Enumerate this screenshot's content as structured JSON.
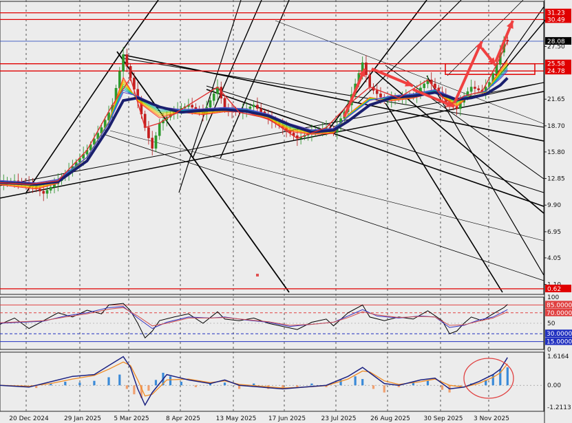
{
  "chart_data": [
    {
      "type": "candlestick",
      "panel": "price",
      "y_ticks": [
        "27.50",
        "21.65",
        "18.70",
        "15.80",
        "12.85",
        "9.90",
        "6.95",
        "4.05",
        "1.10"
      ],
      "y_ticks_values": [
        27.5,
        21.65,
        18.7,
        15.8,
        12.85,
        9.9,
        6.95,
        4.05,
        1.1
      ],
      "ylim": [
        0.0,
        32.5
      ],
      "price_labels": [
        {
          "text": "31.23",
          "value": 31.23,
          "color": "#e00000"
        },
        {
          "text": "30.49",
          "value": 30.49,
          "color": "#e00000"
        },
        {
          "text": "28.08",
          "value": 28.08,
          "color": "#000000"
        },
        {
          "text": "25.58",
          "value": 25.58,
          "color": "#e00000"
        },
        {
          "text": "24.78",
          "value": 24.78,
          "color": "#e00000"
        },
        {
          "text": "0.62",
          "value": 0.62,
          "color": "#e00000"
        }
      ],
      "horizontal_levels": [
        31.23,
        30.49,
        25.58,
        24.78,
        0.62
      ],
      "current_price_line": 28.08,
      "x_labels": [
        "20 Dec 2024",
        "29 Jan 2025",
        "5 Mar 2025",
        "8 Apr 2025",
        "13 May 2025",
        "17 Jun 2025",
        "23 Jul 2025",
        "26 Aug 2025",
        "30 Sep 2025",
        "3 Nov 2025"
      ],
      "close_path": [
        [
          0,
          12.4
        ],
        [
          4,
          12.6
        ],
        [
          8,
          12.2
        ],
        [
          12,
          11.2
        ],
        [
          16,
          12.6
        ],
        [
          20,
          14.2
        ],
        [
          24,
          16.0
        ],
        [
          28,
          18.5
        ],
        [
          31,
          21.0
        ],
        [
          34,
          26.6
        ],
        [
          36,
          24.0
        ],
        [
          38,
          21.5
        ],
        [
          40,
          18.5
        ],
        [
          42,
          16.2
        ],
        [
          44,
          19.0
        ],
        [
          48,
          20.3
        ],
        [
          52,
          21.0
        ],
        [
          56,
          20.0
        ],
        [
          60,
          23.0
        ],
        [
          62,
          20.5
        ],
        [
          66,
          20.2
        ],
        [
          70,
          21.0
        ],
        [
          74,
          19.5
        ],
        [
          78,
          18.5
        ],
        [
          82,
          17.3
        ],
        [
          86,
          18.0
        ],
        [
          90,
          18.5
        ],
        [
          92,
          18.0
        ],
        [
          96,
          21.0
        ],
        [
          100,
          25.7
        ],
        [
          102,
          23.0
        ],
        [
          106,
          21.5
        ],
        [
          110,
          21.8
        ],
        [
          114,
          22.0
        ],
        [
          118,
          23.8
        ],
        [
          122,
          22.0
        ],
        [
          124,
          21.0
        ],
        [
          126,
          20.6
        ],
        [
          128,
          22.0
        ],
        [
          130,
          23.0
        ],
        [
          133,
          22.5
        ],
        [
          135,
          23.5
        ],
        [
          137,
          25.5
        ],
        [
          139,
          28.2
        ],
        [
          140,
          28.08
        ]
      ],
      "ema_path": [
        [
          0,
          12.4
        ],
        [
          10,
          12.2
        ],
        [
          16,
          12.5
        ],
        [
          24,
          14.8
        ],
        [
          30,
          18.5
        ],
        [
          34,
          21.5
        ],
        [
          38,
          21.8
        ],
        [
          44,
          20.8
        ],
        [
          50,
          20.2
        ],
        [
          56,
          20.4
        ],
        [
          62,
          20.5
        ],
        [
          68,
          20.3
        ],
        [
          74,
          19.8
        ],
        [
          80,
          18.8
        ],
        [
          86,
          18.0
        ],
        [
          92,
          18.2
        ],
        [
          96,
          19.2
        ],
        [
          102,
          21.0
        ],
        [
          108,
          21.8
        ],
        [
          114,
          22.0
        ],
        [
          120,
          22.4
        ],
        [
          126,
          21.6
        ],
        [
          130,
          21.8
        ],
        [
          134,
          22.2
        ],
        [
          138,
          23.2
        ],
        [
          140,
          24.0
        ]
      ]
    },
    {
      "type": "line",
      "panel": "oscillator",
      "y_ticks": [
        "100",
        "85.0000",
        "70.0000",
        "50",
        "30.0000",
        "15.0000",
        "0"
      ],
      "y_ticks_values": [
        100,
        85,
        70,
        50,
        30,
        15,
        0
      ],
      "ylim": [
        0,
        100
      ],
      "levels": [
        85,
        70,
        30,
        15
      ],
      "series": [
        {
          "color": "#000000",
          "values": [
            [
              0,
              48
            ],
            [
              4,
              60
            ],
            [
              8,
              40
            ],
            [
              12,
              55
            ],
            [
              16,
              70
            ],
            [
              20,
              62
            ],
            [
              24,
              75
            ],
            [
              28,
              68
            ],
            [
              30,
              85
            ],
            [
              34,
              88
            ],
            [
              36,
              74
            ],
            [
              38,
              50
            ],
            [
              40,
              22
            ],
            [
              42,
              35
            ],
            [
              44,
              55
            ],
            [
              48,
              62
            ],
            [
              52,
              68
            ],
            [
              56,
              50
            ],
            [
              60,
              72
            ],
            [
              62,
              58
            ],
            [
              66,
              55
            ],
            [
              70,
              60
            ],
            [
              74,
              50
            ],
            [
              78,
              44
            ],
            [
              82,
              38
            ],
            [
              86,
              52
            ],
            [
              90,
              58
            ],
            [
              92,
              45
            ],
            [
              96,
              70
            ],
            [
              100,
              85
            ],
            [
              102,
              62
            ],
            [
              106,
              55
            ],
            [
              110,
              62
            ],
            [
              114,
              58
            ],
            [
              118,
              74
            ],
            [
              122,
              55
            ],
            [
              124,
              30
            ],
            [
              126,
              35
            ],
            [
              128,
              50
            ],
            [
              130,
              62
            ],
            [
              133,
              55
            ],
            [
              135,
              64
            ],
            [
              137,
              72
            ],
            [
              139,
              80
            ],
            [
              140,
              86
            ]
          ]
        },
        {
          "color": "#3030c0",
          "values": [
            [
              0,
              50
            ],
            [
              6,
              52
            ],
            [
              12,
              54
            ],
            [
              18,
              64
            ],
            [
              24,
              70
            ],
            [
              30,
              80
            ],
            [
              34,
              82
            ],
            [
              38,
              60
            ],
            [
              42,
              40
            ],
            [
              46,
              52
            ],
            [
              52,
              62
            ],
            [
              58,
              60
            ],
            [
              62,
              62
            ],
            [
              68,
              56
            ],
            [
              74,
              52
            ],
            [
              80,
              44
            ],
            [
              86,
              48
            ],
            [
              92,
              52
            ],
            [
              96,
              64
            ],
            [
              100,
              76
            ],
            [
              104,
              64
            ],
            [
              110,
              60
            ],
            [
              116,
              64
            ],
            [
              120,
              62
            ],
            [
              124,
              42
            ],
            [
              128,
              46
            ],
            [
              132,
              56
            ],
            [
              136,
              62
            ],
            [
              140,
              76
            ]
          ]
        },
        {
          "color": "#d05050",
          "values": [
            [
              0,
              51
            ],
            [
              6,
              53
            ],
            [
              12,
              55
            ],
            [
              18,
              62
            ],
            [
              24,
              68
            ],
            [
              30,
              77
            ],
            [
              34,
              80
            ],
            [
              38,
              64
            ],
            [
              42,
              45
            ],
            [
              46,
              50
            ],
            [
              52,
              60
            ],
            [
              58,
              60
            ],
            [
              62,
              61
            ],
            [
              68,
              57
            ],
            [
              74,
              53
            ],
            [
              80,
              46
            ],
            [
              86,
              48
            ],
            [
              92,
              52
            ],
            [
              96,
              61
            ],
            [
              100,
              72
            ],
            [
              104,
              66
            ],
            [
              110,
              61
            ],
            [
              116,
              63
            ],
            [
              120,
              62
            ],
            [
              124,
              46
            ],
            [
              128,
              47
            ],
            [
              132,
              54
            ],
            [
              136,
              60
            ],
            [
              140,
              72
            ]
          ]
        }
      ]
    },
    {
      "type": "histogram+line",
      "panel": "macd",
      "y_ticks": [
        "1.6164",
        "0.00",
        "-1.2113"
      ],
      "y_ticks_values": [
        1.6164,
        0.0,
        -1.2113
      ],
      "ylim": [
        -1.45,
        1.85
      ],
      "histogram": [
        [
          2,
          -0.05
        ],
        [
          6,
          -0.1
        ],
        [
          10,
          -0.15
        ],
        [
          14,
          0.1
        ],
        [
          18,
          0.2
        ],
        [
          22,
          0.15
        ],
        [
          26,
          0.25
        ],
        [
          30,
          0.45
        ],
        [
          33,
          0.6
        ],
        [
          35,
          -0.2
        ],
        [
          37,
          -0.5
        ],
        [
          39,
          -0.7
        ],
        [
          41,
          -0.3
        ],
        [
          43,
          0.3
        ],
        [
          45,
          0.7
        ],
        [
          47,
          0.5
        ],
        [
          50,
          0.2
        ],
        [
          54,
          -0.1
        ],
        [
          58,
          0.1
        ],
        [
          62,
          0.15
        ],
        [
          66,
          -0.2
        ],
        [
          70,
          0.1
        ],
        [
          74,
          -0.2
        ],
        [
          78,
          -0.15
        ],
        [
          82,
          -0.1
        ],
        [
          86,
          0.1
        ],
        [
          90,
          -0.1
        ],
        [
          94,
          0.3
        ],
        [
          98,
          0.5
        ],
        [
          100,
          0.35
        ],
        [
          103,
          -0.2
        ],
        [
          106,
          -0.4
        ],
        [
          110,
          -0.1
        ],
        [
          114,
          0.2
        ],
        [
          118,
          0.25
        ],
        [
          122,
          -0.25
        ],
        [
          124,
          -0.4
        ],
        [
          127,
          -0.15
        ],
        [
          130,
          0.1
        ],
        [
          134,
          0.3
        ],
        [
          136,
          0.6
        ],
        [
          138,
          0.9
        ],
        [
          140,
          1.0
        ]
      ],
      "macd_line": [
        [
          0,
          0.0
        ],
        [
          8,
          -0.1
        ],
        [
          14,
          0.2
        ],
        [
          20,
          0.5
        ],
        [
          26,
          0.6
        ],
        [
          30,
          1.1
        ],
        [
          34,
          1.6
        ],
        [
          36,
          1.0
        ],
        [
          38,
          -0.2
        ],
        [
          40,
          -1.1
        ],
        [
          42,
          -0.4
        ],
        [
          46,
          0.6
        ],
        [
          52,
          0.3
        ],
        [
          58,
          0.1
        ],
        [
          62,
          0.3
        ],
        [
          66,
          0.0
        ],
        [
          72,
          -0.1
        ],
        [
          78,
          -0.2
        ],
        [
          84,
          -0.1
        ],
        [
          90,
          0.0
        ],
        [
          96,
          0.5
        ],
        [
          100,
          1.0
        ],
        [
          102,
          0.7
        ],
        [
          106,
          0.1
        ],
        [
          110,
          0.0
        ],
        [
          116,
          0.3
        ],
        [
          120,
          0.4
        ],
        [
          124,
          -0.2
        ],
        [
          128,
          -0.1
        ],
        [
          132,
          0.2
        ],
        [
          136,
          0.6
        ],
        [
          138,
          0.9
        ],
        [
          140,
          1.55
        ]
      ],
      "signal_line": [
        [
          0,
          0.0
        ],
        [
          8,
          -0.05
        ],
        [
          14,
          0.1
        ],
        [
          20,
          0.35
        ],
        [
          26,
          0.55
        ],
        [
          30,
          0.9
        ],
        [
          34,
          1.3
        ],
        [
          36,
          1.1
        ],
        [
          38,
          0.3
        ],
        [
          40,
          -0.6
        ],
        [
          42,
          -0.5
        ],
        [
          46,
          0.3
        ],
        [
          52,
          0.35
        ],
        [
          58,
          0.15
        ],
        [
          62,
          0.25
        ],
        [
          66,
          0.05
        ],
        [
          72,
          -0.05
        ],
        [
          78,
          -0.15
        ],
        [
          84,
          -0.1
        ],
        [
          90,
          -0.02
        ],
        [
          96,
          0.35
        ],
        [
          100,
          0.8
        ],
        [
          102,
          0.75
        ],
        [
          106,
          0.25
        ],
        [
          110,
          0.05
        ],
        [
          116,
          0.2
        ],
        [
          120,
          0.35
        ],
        [
          124,
          0.0
        ],
        [
          128,
          -0.1
        ],
        [
          132,
          0.1
        ],
        [
          136,
          0.45
        ],
        [
          138,
          0.7
        ],
        [
          140,
          1.2
        ]
      ]
    }
  ]
}
